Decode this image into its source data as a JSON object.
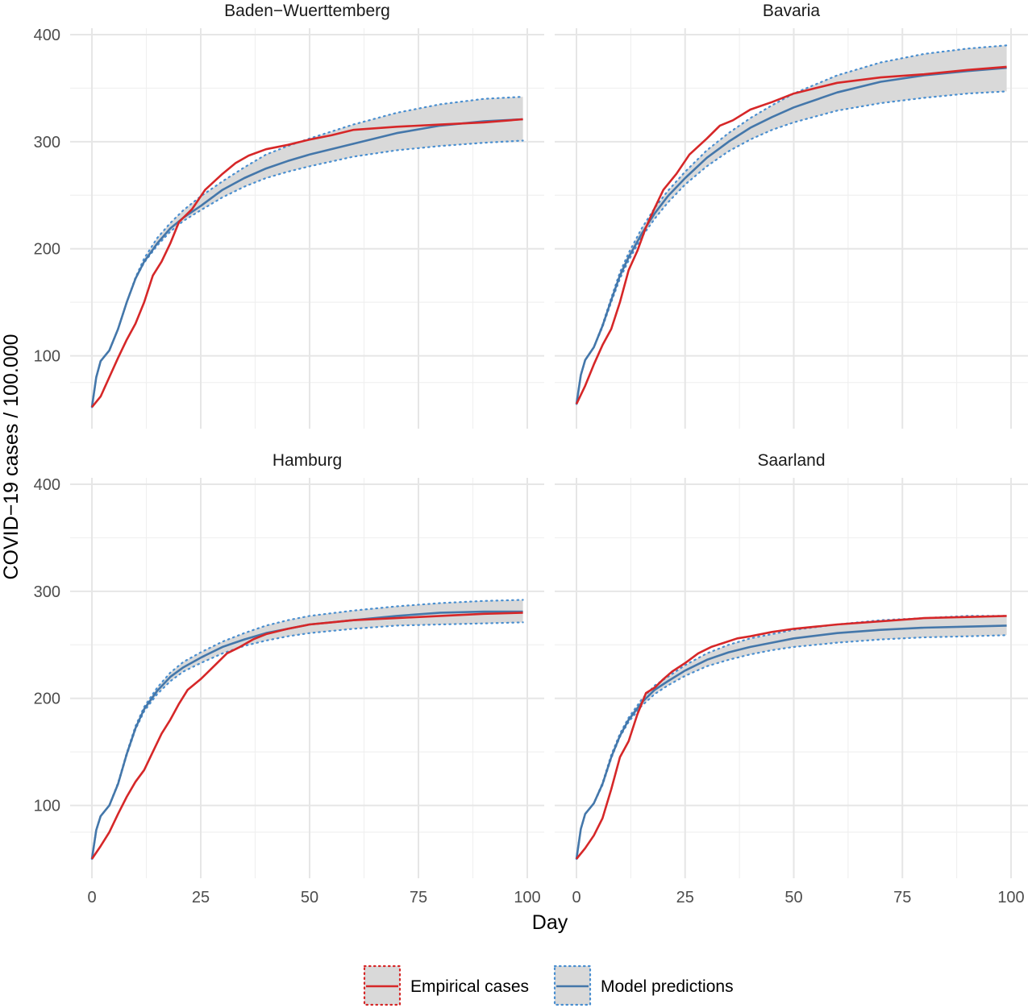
{
  "chart_data": {
    "type": "line",
    "layout": "facet-2x2",
    "xlabel": "Day",
    "ylabel": "COVID−19 cases / 100.000",
    "xlim": [
      0,
      100
    ],
    "ylim": [
      50,
      400
    ],
    "x_ticks": [
      0,
      25,
      50,
      75,
      100
    ],
    "y_ticks": [
      100,
      200,
      300,
      400
    ],
    "grid": true,
    "legend": {
      "placement": "bottom",
      "entries": [
        {
          "name": "Empirical cases",
          "color": "#d62728"
        },
        {
          "name": "Model predictions",
          "color": "#4477aa"
        }
      ]
    },
    "colors": {
      "empirical": "#d62728",
      "model": "#4477aa",
      "band": "#d9d9d9",
      "band_border": "#4a8fd0"
    },
    "panels": [
      {
        "title": "Baden−Wuerttemberg",
        "x": [
          0,
          2,
          4,
          6,
          8,
          10,
          12,
          14,
          16,
          18,
          20,
          23,
          26,
          30,
          33,
          36,
          40,
          45,
          50,
          55,
          60,
          70,
          80,
          90,
          99
        ],
        "empirical": [
          52,
          62,
          80,
          98,
          115,
          130,
          150,
          175,
          188,
          205,
          225,
          237,
          255,
          270,
          280,
          287,
          293,
          297,
          302,
          306,
          311,
          314,
          316,
          318,
          321
        ],
        "model": {
          "x": [
            0,
            1,
            2,
            4,
            6,
            8,
            10,
            12,
            15,
            18,
            21,
            25,
            30,
            35,
            40,
            45,
            50,
            60,
            70,
            80,
            90,
            99
          ],
          "mean": [
            52,
            80,
            95,
            105,
            125,
            150,
            172,
            188,
            205,
            219,
            229,
            240,
            255,
            266,
            275,
            282,
            288,
            298,
            308,
            315,
            319,
            321
          ],
          "lower": [
            52,
            80,
            95,
            105,
            125,
            150,
            172,
            187,
            203,
            216,
            226,
            236,
            248,
            258,
            266,
            272,
            277,
            286,
            292,
            296,
            299,
            301
          ],
          "upper": [
            52,
            80,
            95,
            105,
            125,
            150,
            173,
            191,
            210,
            224,
            236,
            249,
            263,
            276,
            288,
            296,
            303,
            316,
            327,
            335,
            340,
            342
          ]
        }
      },
      {
        "title": "Bavaria",
        "x": [
          0,
          2,
          4,
          6,
          8,
          10,
          12,
          14,
          16,
          18,
          20,
          23,
          26,
          30,
          33,
          36,
          40,
          45,
          50,
          55,
          60,
          70,
          80,
          90,
          99
        ],
        "empirical": [
          55,
          72,
          92,
          110,
          125,
          150,
          180,
          198,
          220,
          238,
          255,
          270,
          288,
          303,
          315,
          320,
          330,
          337,
          345,
          350,
          355,
          360,
          363,
          367,
          370
        ],
        "model": {
          "x": [
            0,
            1,
            2,
            4,
            6,
            8,
            10,
            12,
            15,
            18,
            21,
            25,
            30,
            35,
            40,
            45,
            50,
            60,
            70,
            80,
            90,
            99
          ],
          "mean": [
            55,
            82,
            96,
            108,
            128,
            152,
            175,
            192,
            214,
            233,
            249,
            266,
            285,
            300,
            313,
            323,
            332,
            346,
            356,
            362,
            366,
            369
          ],
          "lower": [
            55,
            82,
            96,
            108,
            127,
            150,
            172,
            189,
            211,
            228,
            243,
            260,
            277,
            291,
            302,
            311,
            318,
            329,
            336,
            341,
            345,
            347
          ],
          "upper": [
            55,
            82,
            96,
            108,
            129,
            154,
            178,
            196,
            219,
            238,
            254,
            272,
            292,
            308,
            322,
            334,
            345,
            362,
            374,
            382,
            387,
            390
          ]
        }
      },
      {
        "title": "Hamburg",
        "x": [
          0,
          2,
          4,
          6,
          8,
          10,
          12,
          14,
          16,
          18,
          20,
          22,
          25,
          28,
          31,
          34,
          37,
          40,
          45,
          50,
          55,
          60,
          70,
          80,
          90,
          99
        ],
        "empirical": [
          50,
          62,
          75,
          92,
          108,
          122,
          133,
          150,
          167,
          180,
          195,
          208,
          218,
          230,
          242,
          248,
          255,
          260,
          265,
          269,
          271,
          273,
          275,
          277,
          279,
          280
        ],
        "model": {
          "x": [
            0,
            1,
            2,
            4,
            6,
            8,
            10,
            12,
            15,
            18,
            21,
            25,
            30,
            35,
            40,
            45,
            50,
            60,
            70,
            80,
            90,
            99
          ],
          "mean": [
            50,
            77,
            90,
            100,
            120,
            148,
            172,
            190,
            207,
            220,
            229,
            238,
            248,
            255,
            261,
            265,
            269,
            273,
            277,
            280,
            281,
            281
          ],
          "lower": [
            50,
            77,
            90,
            100,
            120,
            147,
            171,
            188,
            204,
            216,
            225,
            233,
            242,
            249,
            254,
            258,
            261,
            265,
            268,
            269,
            270,
            271
          ],
          "upper": [
            50,
            77,
            90,
            100,
            121,
            149,
            174,
            192,
            210,
            224,
            234,
            243,
            253,
            261,
            268,
            273,
            277,
            282,
            286,
            289,
            291,
            292
          ]
        }
      },
      {
        "title": "Saarland",
        "x": [
          0,
          2,
          4,
          6,
          8,
          10,
          12,
          14,
          16,
          18,
          20,
          22,
          25,
          28,
          31,
          34,
          37,
          40,
          45,
          50,
          55,
          60,
          70,
          80,
          90,
          99
        ],
        "empirical": [
          50,
          60,
          72,
          88,
          115,
          145,
          160,
          185,
          205,
          210,
          218,
          225,
          233,
          242,
          248,
          252,
          256,
          258,
          262,
          265,
          267,
          269,
          272,
          275,
          276,
          277
        ],
        "model": {
          "x": [
            0,
            1,
            2,
            4,
            6,
            8,
            10,
            12,
            15,
            18,
            21,
            25,
            30,
            35,
            40,
            45,
            50,
            60,
            70,
            80,
            90,
            99
          ],
          "mean": [
            50,
            78,
            92,
            102,
            120,
            145,
            165,
            180,
            196,
            208,
            216,
            226,
            236,
            243,
            248,
            252,
            256,
            261,
            264,
            266,
            267,
            268
          ],
          "lower": [
            50,
            78,
            92,
            102,
            119,
            144,
            164,
            178,
            193,
            204,
            212,
            221,
            230,
            236,
            241,
            245,
            248,
            252,
            255,
            257,
            258,
            259
          ],
          "upper": [
            50,
            78,
            92,
            102,
            121,
            147,
            167,
            182,
            199,
            212,
            220,
            231,
            242,
            250,
            256,
            260,
            264,
            269,
            273,
            275,
            277,
            277
          ]
        }
      }
    ]
  }
}
